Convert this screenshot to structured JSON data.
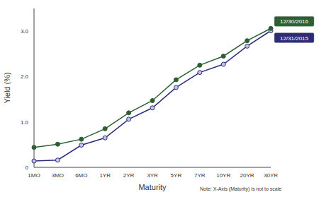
{
  "chart_data": {
    "type": "line",
    "x_label": "Maturity",
    "y_label": "Yield (%)",
    "note": "Note: X-Axis (Maturity) is not to scale",
    "categories": [
      "1MO",
      "3MO",
      "6MO",
      "1YR",
      "2YR",
      "3YR",
      "5YR",
      "7YR",
      "10YR",
      "20YR",
      "30YR"
    ],
    "series": [
      {
        "name": "12/30/2016",
        "color": "#2d5e34",
        "marker": "circle",
        "line_style": "solid",
        "values": [
          0.44,
          0.51,
          0.62,
          0.85,
          1.2,
          1.47,
          1.93,
          2.25,
          2.45,
          2.79,
          3.06
        ]
      },
      {
        "name": "12/31/2015",
        "color": "#2b2c78",
        "marker": "circle",
        "line_style": "solid",
        "values": [
          0.14,
          0.16,
          0.49,
          0.65,
          1.06,
          1.31,
          1.76,
          2.09,
          2.27,
          2.67,
          3.01
        ]
      }
    ],
    "ylim": [
      0,
      3.5
    ],
    "yticks": [
      0,
      {
        "value": 1,
        "label": "1.0"
      },
      {
        "value": 2,
        "label": "2.0"
      },
      {
        "value": 3,
        "label": "3.0"
      }
    ],
    "grid": false,
    "legend": "right"
  }
}
